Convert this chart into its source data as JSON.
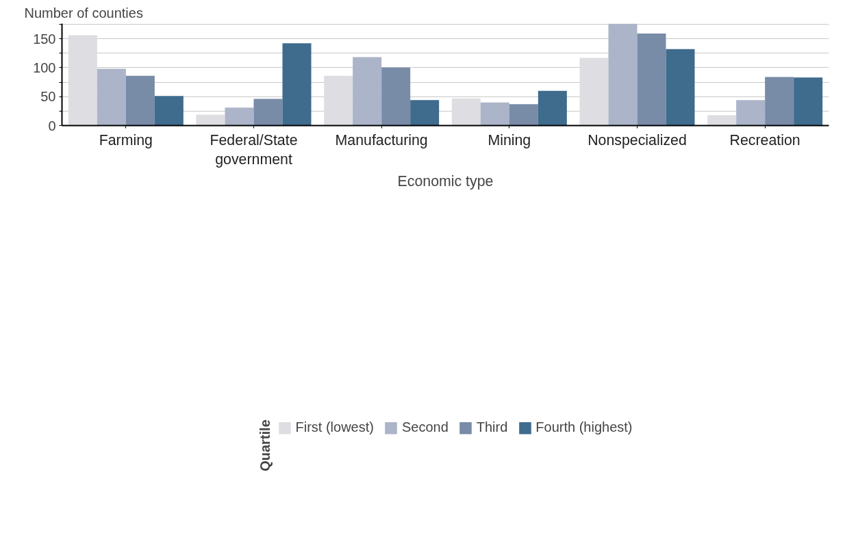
{
  "chart_data": {
    "type": "bar",
    "ylabel": "Number of counties",
    "xlabel": "Economic type",
    "legend_title": "Quartile",
    "categories": [
      "Farming",
      "Federal/State government",
      "Manufacturing",
      "Mining",
      "Nonspecialized",
      "Recreation"
    ],
    "series": [
      {
        "name": "First (lowest)",
        "color": "#dedde2",
        "values": [
          156,
          19,
          86,
          47,
          117,
          18
        ]
      },
      {
        "name": "Second",
        "color": "#abb4c8",
        "values": [
          98,
          31,
          118,
          40,
          176,
          44
        ]
      },
      {
        "name": "Third",
        "color": "#788ba7",
        "values": [
          86,
          46,
          100,
          37,
          159,
          84
        ]
      },
      {
        "name": "Fourth (highest)",
        "color": "#3f6b8c",
        "values": [
          51,
          142,
          44,
          60,
          132,
          83
        ]
      }
    ],
    "ylim": [
      0,
      176
    ],
    "yticks": [
      0,
      {
        "value": 25,
        "label": null
      },
      50,
      {
        "value": 75,
        "label": null
      },
      100,
      {
        "value": 125,
        "label": null
      },
      150,
      {
        "value": 175,
        "label": null
      }
    ],
    "grid": "y",
    "legend": "bottom"
  }
}
